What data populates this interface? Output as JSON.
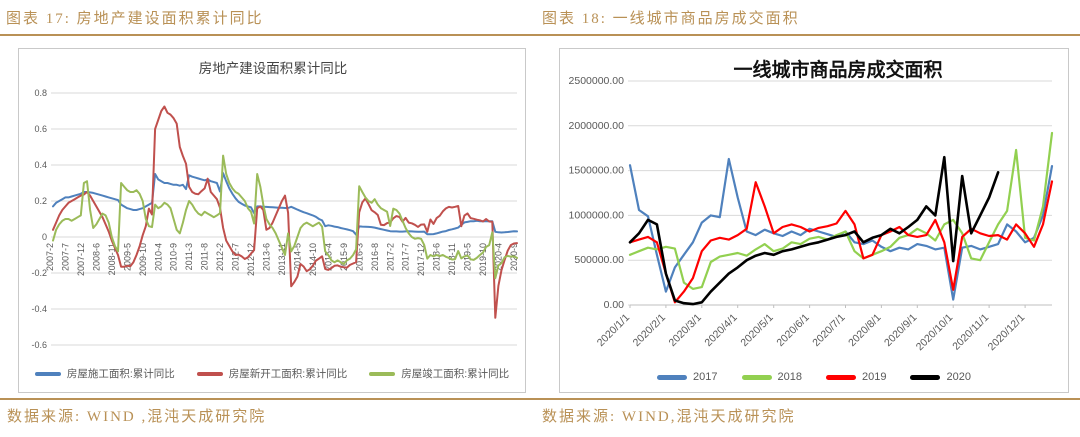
{
  "page": {
    "accent_gold": "#B99156",
    "background": "#ffffff"
  },
  "left_figure": {
    "caption": "图表 17: 房地产建设面积累计同比",
    "source": "数据来源: WIND ,混沌天成研究院"
  },
  "right_figure": {
    "caption": "图表 18: 一线城市商品房成交面积",
    "source": "数据来源: WIND,混沌天成研究院"
  },
  "chart_data": [
    {
      "type": "line",
      "title": "房地产建设面积累计同比",
      "grid": true,
      "legend_position": "bottom",
      "ylim": [
        -0.6,
        0.8
      ],
      "y_ticks": [
        0.8,
        0.6,
        0.4,
        0.2,
        0,
        -0.2,
        -0.4,
        -0.6
      ],
      "n_points": 151,
      "tick_every": 5,
      "x_tick_labels": [
        "2007-2",
        "2007-7",
        "2007-12",
        "2008-6",
        "2008-11",
        "2009-5",
        "2009-10",
        "2010-4",
        "2010-9",
        "2011-3",
        "2011-8",
        "2012-2",
        "2012-7",
        "2012-12",
        "2013-6",
        "2013-11",
        "2014-5",
        "2014-10",
        "2015-4",
        "2015-9",
        "2016-3",
        "2016-8",
        "2017-2",
        "2017-7",
        "2017-12",
        "2018-6",
        "2018-11",
        "2019-5",
        "2019-10",
        "2020-4",
        "2020-9"
      ],
      "series": [
        {
          "name": "房屋施工面积:累计同比",
          "color": "#4F81BD",
          "width": 2,
          "values": [
            0.17,
            0.19,
            0.2,
            0.21,
            0.22,
            0.22,
            0.225,
            0.23,
            0.235,
            0.24,
            0.25,
            0.25,
            0.248,
            0.245,
            0.24,
            0.235,
            0.23,
            0.225,
            0.22,
            0.215,
            0.21,
            0.205,
            0.18,
            0.17,
            0.16,
            0.155,
            0.15,
            0.15,
            0.155,
            0.16,
            0.17,
            0.18,
            0.19,
            0.35,
            0.32,
            0.31,
            0.3,
            0.3,
            0.295,
            0.29,
            0.29,
            0.285,
            0.29,
            0.266,
            0.343,
            0.335,
            0.33,
            0.325,
            0.32,
            0.315,
            0.32,
            0.31,
            0.305,
            0.3,
            0.253,
            0.355,
            0.31,
            0.27,
            0.24,
            0.215,
            0.195,
            0.185,
            0.175,
            0.17,
            0.165,
            0.133,
            0.17,
            0.17,
            0.168,
            0.167,
            0.166,
            0.165,
            0.164,
            0.163,
            0.162,
            0.161,
            0.161,
            0.168,
            0.16,
            0.152,
            0.145,
            0.138,
            0.132,
            0.126,
            0.12,
            0.112,
            0.1,
            0.092,
            0.06,
            0.065,
            0.062,
            0.058,
            0.055,
            0.05,
            0.046,
            0.042,
            0.038,
            0.032,
            0.013,
            0.059,
            0.058,
            0.057,
            0.056,
            0.055,
            0.052,
            0.048,
            0.044,
            0.04,
            0.036,
            0.032,
            0.031,
            0.031,
            0.03,
            0.03,
            0.031,
            0.032,
            0.031,
            0.03,
            0.029,
            0.029,
            0.03,
            0.015,
            0.015,
            0.016,
            0.02,
            0.025,
            0.03,
            0.033,
            0.039,
            0.043,
            0.047,
            0.052,
            0.068,
            0.081,
            0.084,
            0.088,
            0.088,
            0.09,
            0.088,
            0.087,
            0.087,
            0.087,
            0.087,
            0.029,
            0.026,
            0.025,
            0.026,
            0.028,
            0.03,
            0.032,
            0.031
          ]
        },
        {
          "name": "房屋新开工面积:累计同比",
          "color": "#C0504D",
          "width": 2,
          "values": [
            0.04,
            0.08,
            0.12,
            0.15,
            0.17,
            0.19,
            0.2,
            0.21,
            0.22,
            0.23,
            0.236,
            0.25,
            0.23,
            0.2,
            0.17,
            0.14,
            0.11,
            0.07,
            0.03,
            -0.02,
            -0.06,
            -0.1,
            -0.165,
            -0.165,
            -0.16,
            -0.162,
            -0.14,
            -0.1,
            -0.052,
            0.01,
            0.06,
            0.158,
            0.125,
            0.6,
            0.65,
            0.7,
            0.725,
            0.69,
            0.68,
            0.66,
            0.63,
            0.5,
            0.45,
            0.407,
            0.279,
            0.25,
            0.24,
            0.238,
            0.255,
            0.27,
            0.324,
            0.25,
            0.23,
            0.21,
            0.162,
            0.051,
            -0.02,
            -0.05,
            -0.08,
            -0.1,
            -0.098,
            -0.108,
            -0.122,
            -0.113,
            -0.092,
            -0.073,
            0.16,
            0.17,
            0.15,
            0.04,
            0.05,
            0.08,
            0.12,
            0.16,
            0.2,
            0.23,
            0.135,
            -0.274,
            -0.25,
            -0.22,
            -0.15,
            -0.164,
            -0.19,
            -0.18,
            -0.16,
            -0.131,
            -0.12,
            -0.107,
            -0.177,
            -0.183,
            -0.172,
            -0.16,
            -0.158,
            -0.165,
            -0.168,
            -0.17,
            -0.155,
            -0.147,
            -0.14,
            0.137,
            0.192,
            0.214,
            0.183,
            0.149,
            0.137,
            0.122,
            0.068,
            0.066,
            0.077,
            0.081,
            0.104,
            0.116,
            0.111,
            0.085,
            0.106,
            0.08,
            0.076,
            0.068,
            0.056,
            0.069,
            0.07,
            0.029,
            0.097,
            0.073,
            0.105,
            0.118,
            0.142,
            0.159,
            0.167,
            0.164,
            0.168,
            0.172,
            0.06,
            0.119,
            0.131,
            0.105,
            0.101,
            0.096,
            0.093,
            0.086,
            0.1,
            0.086,
            0.085,
            -0.449,
            -0.271,
            -0.184,
            -0.128,
            -0.076,
            -0.045,
            -0.036,
            -0.034
          ]
        },
        {
          "name": "房屋竣工面积:累计同比",
          "color": "#9BBB59",
          "width": 2,
          "values": [
            -0.02,
            0.04,
            0.07,
            0.09,
            0.1,
            0.1,
            0.09,
            0.1,
            0.11,
            0.12,
            0.3,
            0.31,
            0.15,
            0.05,
            0.07,
            0.1,
            0.13,
            0.12,
            0.08,
            0.0,
            -0.05,
            -0.08,
            0.3,
            0.28,
            0.26,
            0.25,
            0.25,
            0.26,
            0.24,
            0.2,
            0.1,
            0.06,
            0.055,
            0.18,
            0.16,
            0.17,
            0.19,
            0.18,
            0.16,
            0.1,
            0.04,
            0.02,
            0.08,
            0.15,
            0.2,
            0.18,
            0.15,
            0.13,
            0.12,
            0.14,
            0.13,
            0.12,
            0.11,
            0.12,
            0.132,
            0.452,
            0.35,
            0.3,
            0.27,
            0.25,
            0.24,
            0.22,
            0.2,
            0.16,
            0.14,
            0.075,
            0.35,
            0.28,
            0.18,
            0.1,
            0.07,
            0.05,
            0.02,
            -0.02,
            -0.06,
            -0.1,
            0.02,
            -0.08,
            -0.05,
            0.0,
            0.05,
            0.07,
            0.08,
            0.07,
            0.06,
            0.07,
            0.08,
            0.058,
            -0.08,
            -0.1,
            -0.13,
            -0.14,
            -0.13,
            -0.14,
            -0.15,
            -0.13,
            -0.12,
            -0.1,
            -0.069,
            0.282,
            0.25,
            0.22,
            0.2,
            0.19,
            0.21,
            0.18,
            0.16,
            0.15,
            0.14,
            0.061,
            0.158,
            0.15,
            0.13,
            0.09,
            0.05,
            0.02,
            0.0,
            -0.01,
            -0.006,
            -0.01,
            -0.044,
            -0.12,
            -0.1,
            -0.108,
            -0.1,
            -0.106,
            -0.1,
            -0.11,
            -0.116,
            -0.125,
            -0.123,
            -0.078,
            -0.119,
            -0.108,
            -0.103,
            -0.124,
            -0.127,
            -0.116,
            -0.1,
            -0.086,
            -0.055,
            -0.045,
            0.026,
            -0.229,
            -0.158,
            -0.145,
            -0.113,
            -0.105,
            -0.109,
            -0.108,
            -0.116
          ]
        }
      ]
    },
    {
      "type": "line",
      "title": "一线城市商品房成交面积",
      "grid": true,
      "legend_position": "bottom",
      "ylim": [
        0,
        2500000
      ],
      "y_ticks": [
        2500000,
        2000000,
        1500000,
        1000000,
        500000,
        0
      ],
      "y_tick_format": "fixed2",
      "n_points": 48,
      "tick_every": 4,
      "x_tick_labels": [
        "2020/1/1",
        "2020/2/1",
        "2020/3/1",
        "2020/4/1",
        "2020/5/1",
        "2020/6/1",
        "2020/7/1",
        "2020/8/1",
        "2020/9/1",
        "2020/10/1",
        "2020/11/1",
        "2020/12/1"
      ],
      "series": [
        {
          "name": "2017",
          "color": "#4F81BD",
          "width": 2.2,
          "values": [
            1560000,
            1060000,
            990000,
            560000,
            150000,
            420000,
            560000,
            700000,
            920000,
            1000000,
            980000,
            1630000,
            1200000,
            820000,
            780000,
            840000,
            800000,
            770000,
            820000,
            780000,
            850000,
            820000,
            790000,
            760000,
            820000,
            700000,
            680000,
            720000,
            650000,
            600000,
            640000,
            620000,
            680000,
            660000,
            620000,
            640000,
            60000,
            640000,
            660000,
            620000,
            650000,
            680000,
            900000,
            820000,
            700000,
            750000,
            1000000,
            1550000
          ]
        },
        {
          "name": "2018",
          "color": "#92D050",
          "width": 2.2,
          "values": [
            560000,
            600000,
            640000,
            620000,
            650000,
            630000,
            250000,
            180000,
            200000,
            480000,
            540000,
            560000,
            580000,
            550000,
            620000,
            680000,
            600000,
            630000,
            700000,
            680000,
            740000,
            760000,
            730000,
            780000,
            820000,
            600000,
            520000,
            560000,
            600000,
            650000,
            750000,
            780000,
            850000,
            800000,
            720000,
            900000,
            950000,
            800000,
            520000,
            500000,
            700000,
            900000,
            1050000,
            1730000,
            750000,
            720000,
            1100000,
            1920000
          ]
        },
        {
          "name": "2019",
          "color": "#FF0000",
          "width": 2.2,
          "values": [
            700000,
            730000,
            760000,
            700000,
            350000,
            30000,
            150000,
            300000,
            600000,
            720000,
            750000,
            730000,
            780000,
            850000,
            1370000,
            1100000,
            800000,
            870000,
            900000,
            870000,
            820000,
            860000,
            880000,
            910000,
            1050000,
            900000,
            520000,
            560000,
            780000,
            820000,
            870000,
            780000,
            760000,
            780000,
            950000,
            700000,
            170000,
            760000,
            850000,
            800000,
            770000,
            780000,
            730000,
            900000,
            800000,
            650000,
            900000,
            1380000
          ]
        },
        {
          "name": "2020",
          "color": "#000000",
          "width": 2.6,
          "values": [
            700000,
            800000,
            950000,
            900000,
            350000,
            50000,
            20000,
            10000,
            30000,
            150000,
            250000,
            350000,
            420000,
            500000,
            550000,
            580000,
            560000,
            600000,
            620000,
            650000,
            680000,
            700000,
            730000,
            760000,
            780000,
            820000,
            700000,
            750000,
            780000,
            850000,
            800000,
            870000,
            950000,
            1100000,
            1000000,
            1650000,
            490000,
            1440000,
            800000,
            1000000,
            1200000,
            1480000
          ]
        }
      ]
    }
  ]
}
